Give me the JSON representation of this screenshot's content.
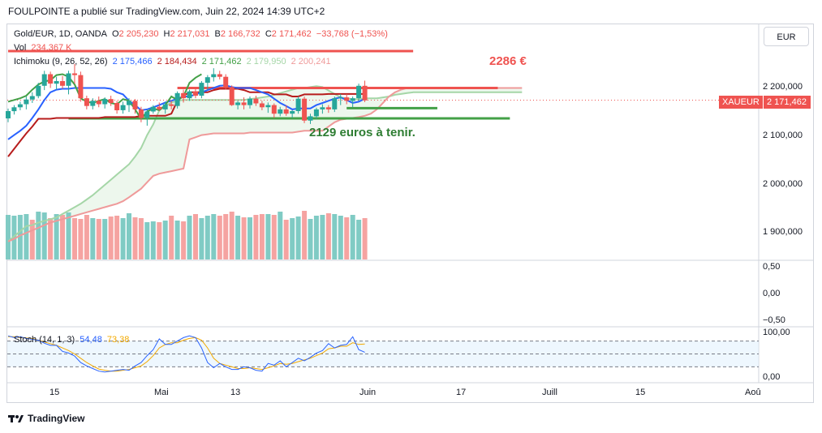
{
  "header": "FOULPOINTE a publié sur TradingView.com, Juin 22, 2024 14:39 UTC+2",
  "symbol": {
    "name": "Gold/EUR, 1D, OANDA",
    "o_label": "O",
    "o": "2 205,230",
    "h_label": "H",
    "h": "2 217,031",
    "l_label": "B",
    "l": "2 166,732",
    "c_label": "C",
    "c": "2 171,462",
    "change": "−33,768 (−1,53%)"
  },
  "volume": {
    "label": "Vol",
    "value": "234,367 K"
  },
  "ichimoku": {
    "label": "Ichimoku (9, 26, 52, 26)",
    "v1": "2 175,466",
    "v2": "2 184,434",
    "v3": "2 171,462",
    "v4": "2 179,950",
    "v5": "2 200,241"
  },
  "currency_button": "EUR",
  "annotations": {
    "target": "2286 €",
    "support": "2129 euros à tenir."
  },
  "price_tag": {
    "symbol": "XAUEUR",
    "value": "2 171,462"
  },
  "price_axis": [
    "2 200,000",
    "2 100,000",
    "2 000,000",
    "1 900,000"
  ],
  "osc_axis": [
    "0,50",
    "0,00",
    "−0,50"
  ],
  "stoch": {
    "label": "Stoch (14, 1, 3)",
    "k": "54,48",
    "d": "73,38",
    "axis": [
      "100,00",
      "0,00"
    ]
  },
  "x_axis": [
    "15",
    "Mai",
    "13",
    "Juin",
    "17",
    "Juill",
    "15",
    "Aoû"
  ],
  "footer": "TradingView",
  "colors": {
    "up": "#26a69a",
    "down": "#ef5350",
    "tenkan": "#2962ff",
    "kijun": "#b71c1c",
    "chikou": "#43a047",
    "spanA": "#a5d6a7",
    "spanB": "#ef9a9a"
  },
  "chart_data": {
    "type": "candlestick",
    "candles": [
      [
        2129,
        2152,
        2120,
        2146
      ],
      [
        2146,
        2160,
        2138,
        2155
      ],
      [
        2155,
        2168,
        2148,
        2162
      ],
      [
        2162,
        2180,
        2150,
        2173
      ],
      [
        2173,
        2190,
        2165,
        2181
      ],
      [
        2181,
        2212,
        2176,
        2205
      ],
      [
        2205,
        2240,
        2195,
        2232
      ],
      [
        2232,
        2238,
        2200,
        2210
      ],
      [
        2210,
        2226,
        2196,
        2216
      ],
      [
        2216,
        2228,
        2198,
        2205
      ],
      [
        2205,
        2240,
        2185,
        2234
      ],
      [
        2234,
        2256,
        2210,
        2230
      ],
      [
        2230,
        2238,
        2168,
        2176
      ],
      [
        2176,
        2182,
        2150,
        2158
      ],
      [
        2158,
        2176,
        2150,
        2170
      ],
      [
        2170,
        2180,
        2155,
        2162
      ],
      [
        2162,
        2178,
        2152,
        2174
      ],
      [
        2174,
        2182,
        2158,
        2165
      ],
      [
        2165,
        2170,
        2140,
        2148
      ],
      [
        2148,
        2168,
        2140,
        2160
      ],
      [
        2160,
        2176,
        2144,
        2170
      ],
      [
        2170,
        2174,
        2140,
        2150
      ],
      [
        2150,
        2156,
        2120,
        2130
      ],
      [
        2130,
        2150,
        2112,
        2145
      ],
      [
        2145,
        2160,
        2140,
        2156
      ],
      [
        2156,
        2166,
        2146,
        2150
      ],
      [
        2150,
        2168,
        2140,
        2162
      ],
      [
        2162,
        2170,
        2150,
        2158
      ],
      [
        2158,
        2192,
        2152,
        2188
      ],
      [
        2188,
        2196,
        2166,
        2176
      ],
      [
        2176,
        2196,
        2170,
        2192
      ],
      [
        2192,
        2198,
        2176,
        2182
      ],
      [
        2182,
        2216,
        2176,
        2212
      ],
      [
        2212,
        2230,
        2196,
        2225
      ],
      [
        2225,
        2246,
        2215,
        2232
      ],
      [
        2232,
        2240,
        2220,
        2226
      ],
      [
        2226,
        2232,
        2196,
        2202
      ],
      [
        2202,
        2206,
        2158,
        2160
      ],
      [
        2160,
        2170,
        2150,
        2166
      ],
      [
        2166,
        2178,
        2150,
        2160
      ],
      [
        2160,
        2180,
        2152,
        2175
      ],
      [
        2175,
        2182,
        2158,
        2164
      ],
      [
        2164,
        2170,
        2148,
        2155
      ],
      [
        2155,
        2166,
        2142,
        2160
      ],
      [
        2160,
        2164,
        2130,
        2140
      ],
      [
        2140,
        2156,
        2134,
        2150
      ],
      [
        2150,
        2160,
        2135,
        2140
      ],
      [
        2140,
        2148,
        2130,
        2146
      ],
      [
        2146,
        2180,
        2140,
        2175
      ],
      [
        2175,
        2180,
        2118,
        2124
      ],
      [
        2124,
        2140,
        2116,
        2134
      ],
      [
        2134,
        2154,
        2128,
        2150
      ],
      [
        2150,
        2162,
        2140,
        2155
      ],
      [
        2155,
        2160,
        2142,
        2150
      ],
      [
        2150,
        2180,
        2144,
        2176
      ],
      [
        2176,
        2186,
        2160,
        2178
      ],
      [
        2178,
        2186,
        2162,
        2170
      ],
      [
        2170,
        2180,
        2155,
        2176
      ],
      [
        2176,
        2210,
        2170,
        2205
      ],
      [
        2205,
        2217,
        2167,
        2171
      ]
    ],
    "volume": [
      55,
      54,
      55,
      56,
      49,
      59,
      58,
      51,
      56,
      55,
      58,
      51,
      50,
      55,
      51,
      50,
      50,
      53,
      54,
      51,
      57,
      52,
      51,
      46,
      47,
      46,
      48,
      54,
      48,
      47,
      54,
      56,
      51,
      54,
      56,
      54,
      56,
      59,
      54,
      52,
      52,
      55,
      56,
      56,
      55,
      59,
      49,
      51,
      53,
      60,
      50,
      54,
      55,
      57,
      56,
      54,
      52,
      55,
      49,
      51
    ],
    "volume_up": [
      true,
      true,
      true,
      true,
      false,
      true,
      true,
      false,
      true,
      false,
      true,
      false,
      false,
      false,
      true,
      false,
      true,
      false,
      false,
      true,
      true,
      false,
      false,
      true,
      true,
      false,
      true,
      false,
      true,
      false,
      true,
      false,
      true,
      true,
      true,
      false,
      false,
      false,
      true,
      false,
      true,
      false,
      false,
      true,
      false,
      true,
      false,
      true,
      true,
      false,
      true,
      true,
      true,
      false,
      true,
      true,
      false,
      true,
      true,
      false
    ],
    "tenkan": [
      2080,
      2090,
      2100,
      2112,
      2130,
      2150,
      2172,
      2190,
      2196,
      2198,
      2198,
      2200,
      2200,
      2200,
      2200,
      2200,
      2200,
      2198,
      2190,
      2185,
      2170,
      2160,
      2148,
      2150,
      2155,
      2160,
      2166,
      2170,
      2175,
      2180,
      2180,
      2185,
      2190,
      2195,
      2200,
      2205,
      2206,
      2202,
      2200,
      2200,
      2200,
      2195,
      2190,
      2185,
      2175,
      2165,
      2158,
      2150,
      2152,
      2152,
      2152,
      2160,
      2165,
      2170,
      2175,
      2178,
      2172,
      2165,
      2168,
      2175
    ],
    "kijun": [
      2040,
      2058,
      2076,
      2094,
      2110,
      2128,
      2128,
      2128,
      2130,
      2130,
      2130,
      2130,
      2130,
      2130,
      2130,
      2130,
      2132,
      2132,
      2132,
      2132,
      2132,
      2132,
      2135,
      2135,
      2135,
      2135,
      2135,
      2140,
      2170,
      2182,
      2190,
      2190,
      2190,
      2190,
      2195,
      2198,
      2198,
      2198,
      2198,
      2195,
      2190,
      2190,
      2190,
      2190,
      2185,
      2185,
      2185,
      2180,
      2180,
      2185,
      2185,
      2185,
      2185,
      2186,
      2186,
      2186,
      2186,
      2186,
      2186,
      2186
    ],
    "chikou": [
      2168,
      2172,
      2176,
      2182,
      2196,
      2208,
      2215,
      2218,
      2230,
      2232,
      2226,
      2208,
      2176,
      2168,
      2165,
      2170,
      2174,
      2165,
      2162,
      2174,
      2170,
      2150,
      2128,
      2145,
      2152,
      2148,
      2160,
      2180,
      2172,
      2180,
      2212,
      2224,
      2232
    ],
    "spanA": [
      1842,
      1854,
      1866,
      1878,
      1880,
      1886,
      1890,
      1894,
      1898,
      1906,
      1914,
      1922,
      1930,
      1940,
      1950,
      1962,
      1974,
      1986,
      1998,
      2010,
      2022,
      2040,
      2060,
      2090,
      2115,
      2148,
      2158,
      2166,
      2170,
      2172,
      2172,
      2172,
      2172,
      2172,
      2172,
      2172,
      2172,
      2172,
      2172,
      2172,
      2174,
      2176,
      2178,
      2180,
      2184,
      2188,
      2192,
      2196,
      2200,
      2200,
      2202,
      2204,
      2202,
      2194,
      2186,
      2178,
      2176,
      2174,
      2174,
      2176,
      2176,
      2176,
      2178,
      2180,
      2184,
      2186,
      2188,
      2190,
      2190,
      2190,
      2190,
      2190,
      2190,
      2190,
      2190,
      2190,
      2190,
      2190,
      2190,
      2190,
      2190,
      2190,
      2190,
      2190,
      2190,
      2190
    ],
    "spanB": [
      1842,
      1848,
      1856,
      1862,
      1868,
      1874,
      1880,
      1886,
      1890,
      1894,
      1898,
      1902,
      1906,
      1910,
      1914,
      1918,
      1922,
      1926,
      1930,
      1936,
      1945,
      1955,
      1965,
      1980,
      1995,
      2000,
      2003,
      2006,
      2009,
      2012,
      2080,
      2085,
      2090,
      2092,
      2094,
      2094,
      2094,
      2094,
      2094,
      2094,
      2096,
      2096,
      2096,
      2096,
      2096,
      2096,
      2096,
      2096,
      2098,
      2100,
      2100,
      2100,
      2100,
      2110,
      2120,
      2126,
      2128,
      2130,
      2132,
      2135,
      2140,
      2150,
      2165,
      2180,
      2190,
      2196,
      2200,
      2200,
      2200,
      2200,
      2200,
      2200,
      2200,
      2200,
      2200,
      2200,
      2200,
      2200,
      2200,
      2200,
      2200,
      2200,
      2200,
      2200,
      2200,
      2200
    ],
    "hlines": [
      {
        "price": 2286,
        "color": "#ef5350",
        "x0": 0,
        "x1": 67
      },
      {
        "price": 2200,
        "color": "#ef5350",
        "x0": 28,
        "x1": 81
      },
      {
        "price": 2153,
        "color": "#43a047",
        "x0": 56,
        "x1": 71
      },
      {
        "price": 2129,
        "color": "#43a047",
        "x0": 10,
        "x1": 83
      }
    ],
    "stoch_k": [
      92,
      88,
      90,
      86,
      84,
      82,
      75,
      70,
      70,
      56,
      52,
      45,
      30,
      22,
      16,
      10,
      8,
      10,
      12,
      14,
      12,
      22,
      30,
      46,
      60,
      85,
      72,
      72,
      80,
      88,
      92,
      88,
      64,
      30,
      18,
      28,
      20,
      14,
      14,
      20,
      18,
      12,
      10,
      28,
      24,
      34,
      20,
      30,
      40,
      34,
      42,
      52,
      58,
      74,
      64,
      70,
      72,
      90,
      60,
      54
    ],
    "stoch_d": [
      90,
      90,
      88,
      87,
      86,
      82,
      78,
      74,
      70,
      64,
      58,
      50,
      40,
      30,
      22,
      15,
      12,
      10,
      10,
      12,
      14,
      18,
      22,
      32,
      46,
      64,
      72,
      76,
      76,
      82,
      86,
      88,
      82,
      64,
      40,
      28,
      24,
      20,
      16,
      16,
      18,
      16,
      14,
      18,
      22,
      28,
      26,
      28,
      32,
      36,
      40,
      46,
      52,
      62,
      64,
      68,
      68,
      76,
      72,
      73
    ],
    "price_min": 1800,
    "price_max": 2320
  }
}
